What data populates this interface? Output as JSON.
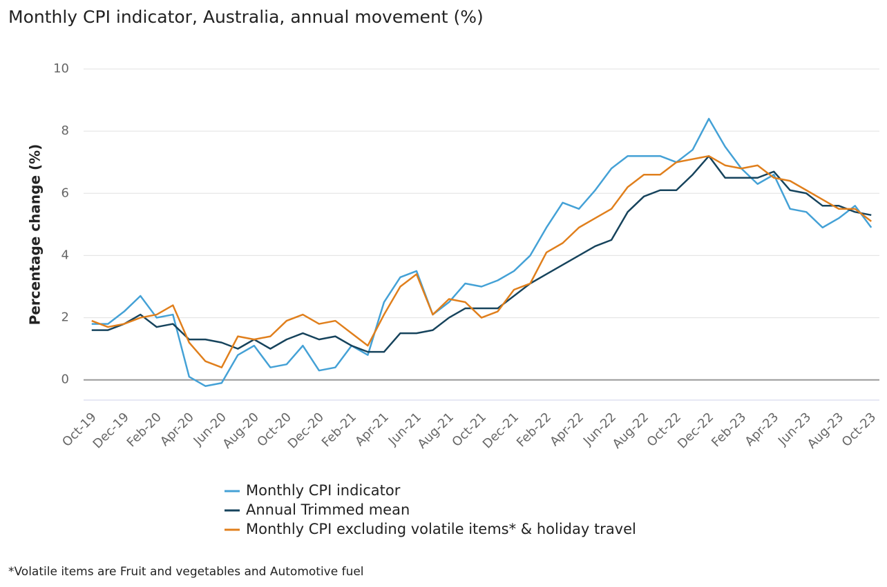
{
  "chart_data": {
    "type": "line",
    "title": "Monthly CPI indicator, Australia, annual movement (%)",
    "y_label": "Percentage change (%)",
    "footnote": "*Volatile items are Fruit and vegetables and Automotive fuel",
    "categories": [
      "Oct-19",
      null,
      "Dec-19",
      null,
      "Feb-20",
      null,
      "Apr-20",
      null,
      "Jun-20",
      null,
      "Aug-20",
      null,
      "Oct-20",
      null,
      "Dec-20",
      null,
      "Feb-21",
      null,
      "Apr-21",
      null,
      "Jun-21",
      null,
      "Aug-21",
      null,
      "Oct-21",
      null,
      "Dec-21",
      null,
      "Feb-22",
      null,
      "Apr-22",
      null,
      "Jun-22",
      null,
      "Aug-22",
      null,
      "Oct-22",
      null,
      "Dec-22",
      null,
      "Feb-23",
      null,
      "Apr-23",
      null,
      "Jun-23",
      null,
      "Aug-23",
      null,
      "Oct-23"
    ],
    "series": [
      {
        "name": "Monthly CPI indicator",
        "color": "#44a1d6",
        "values": [
          1.8,
          1.8,
          2.2,
          2.7,
          2.0,
          2.1,
          0.1,
          -0.2,
          -0.1,
          0.8,
          1.1,
          0.4,
          0.5,
          1.1,
          0.3,
          0.4,
          1.1,
          0.8,
          2.5,
          3.3,
          3.5,
          2.1,
          2.5,
          3.1,
          3.0,
          3.2,
          3.5,
          4.0,
          4.9,
          5.7,
          5.5,
          6.1,
          6.8,
          7.2,
          7.2,
          7.2,
          7.0,
          7.4,
          8.4,
          7.5,
          6.8,
          6.3,
          6.6,
          5.5,
          5.4,
          4.9,
          5.2,
          5.6,
          4.9
        ]
      },
      {
        "name": "Annual Trimmed mean",
        "color": "#16435c",
        "values": [
          1.6,
          1.6,
          1.8,
          2.1,
          1.7,
          1.8,
          1.3,
          1.3,
          1.2,
          1.0,
          1.3,
          1.0,
          1.3,
          1.5,
          1.3,
          1.4,
          1.1,
          0.9,
          0.9,
          1.5,
          1.5,
          1.6,
          2.0,
          2.3,
          2.3,
          2.3,
          2.7,
          3.1,
          3.4,
          3.7,
          4.0,
          4.3,
          4.5,
          5.4,
          5.9,
          6.1,
          6.1,
          6.6,
          7.2,
          6.5,
          6.5,
          6.5,
          6.7,
          6.1,
          6.0,
          5.6,
          5.6,
          5.4,
          5.3
        ]
      },
      {
        "name": "Monthly CPI excluding volatile items* & holiday travel",
        "color": "#e07f1c",
        "values": [
          1.9,
          1.7,
          1.8,
          2.0,
          2.1,
          2.4,
          1.2,
          0.6,
          0.4,
          1.4,
          1.3,
          1.4,
          1.9,
          2.1,
          1.8,
          1.9,
          1.5,
          1.1,
          2.1,
          3.0,
          3.4,
          2.1,
          2.6,
          2.5,
          2.0,
          2.2,
          2.9,
          3.1,
          4.1,
          4.4,
          4.9,
          5.2,
          5.5,
          6.2,
          6.6,
          6.6,
          7.0,
          7.1,
          7.2,
          6.9,
          6.8,
          6.9,
          6.5,
          6.4,
          6.1,
          5.8,
          5.5,
          5.5,
          5.1
        ]
      }
    ],
    "ylim": [
      -0.65,
      10
    ],
    "yticks": [
      0,
      2,
      4,
      6,
      8,
      10
    ],
    "grid": true
  }
}
